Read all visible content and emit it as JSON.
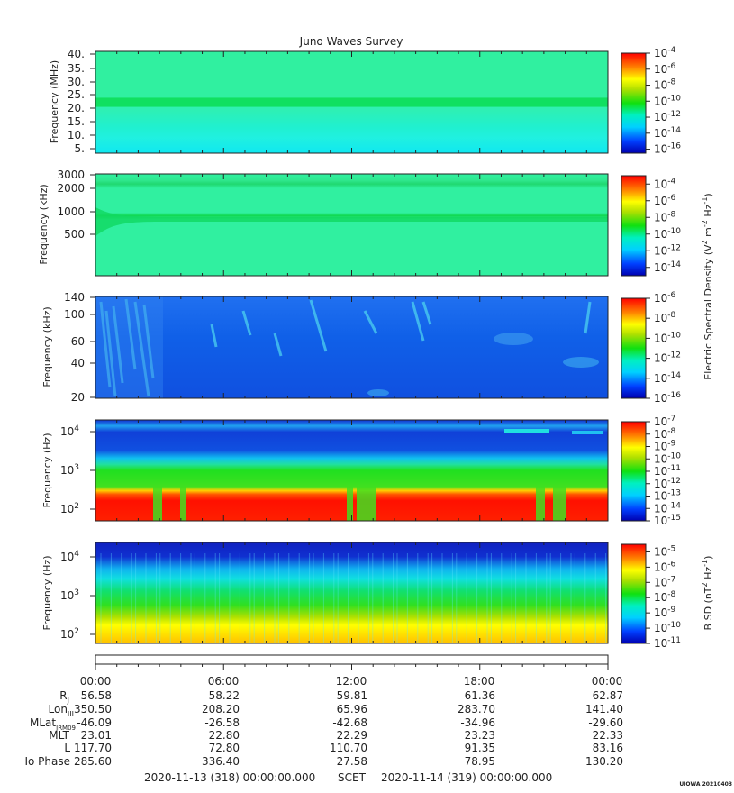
{
  "chart_data": {
    "type": "heatmap",
    "title": "Juno Waves Survey",
    "credit": "UIOWA 20210403",
    "panels": [
      {
        "ylabel": "Frequency (MHz)",
        "yscale": "linear",
        "yticks": [
          "40.",
          "35.",
          "30.",
          "25.",
          "20.",
          "15.",
          "10.",
          "5."
        ],
        "ylim": [
          3.5,
          40
        ],
        "colorbar": {
          "labels": [
            "10",
            "10",
            "10",
            "10",
            "10",
            "10",
            "10"
          ],
          "exps": [
            "-4",
            "-6",
            "-8",
            "-10",
            "-12",
            "-14",
            "-16"
          ],
          "range": [
            -16.5,
            -4
          ]
        }
      },
      {
        "ylabel": "Frequency (kHz)",
        "yscale": "log",
        "yticks": [
          "3000",
          "2000",
          "1000",
          "500"
        ],
        "ylim": [
          140,
          3000
        ],
        "colorbar": {
          "labels": [
            "10",
            "10",
            "10",
            "10",
            "10",
            "10"
          ],
          "exps": [
            "-4",
            "-6",
            "-8",
            "-10",
            "-12",
            "-14"
          ],
          "range": [
            -15,
            -3
          ]
        }
      },
      {
        "ylabel": "Frequency (kHz)",
        "yscale": "log",
        "yticks": [
          "140",
          "100",
          "60",
          "40",
          "20"
        ],
        "ylim": [
          20,
          140
        ],
        "colorbar": {
          "labels": [
            "10",
            "10",
            "10",
            "10",
            "10",
            "10"
          ],
          "exps": [
            "-6",
            "-8",
            "-10",
            "-12",
            "-14",
            "-16"
          ],
          "range": [
            -16,
            -6
          ]
        }
      },
      {
        "ylabel": "Frequency (Hz)",
        "yscale": "log",
        "yticks": [
          "10",
          "10",
          "10"
        ],
        "ytick_exps": [
          "4",
          "3",
          "2"
        ],
        "ylim": [
          50,
          20000
        ],
        "colorbar": {
          "labels": [
            "10",
            "10",
            "10",
            "10",
            "10",
            "10",
            "10",
            "10",
            "10"
          ],
          "exps": [
            "-7",
            "-8",
            "-9",
            "-10",
            "-11",
            "-12",
            "-13",
            "-14",
            "-15"
          ],
          "range": [
            -15,
            -7
          ]
        }
      },
      {
        "ylabel": "Frequency (Hz)",
        "yscale": "log",
        "yticks": [
          "10",
          "10",
          "10"
        ],
        "ytick_exps": [
          "4",
          "3",
          "2"
        ],
        "ylim": [
          50,
          20000
        ],
        "colorbar": {
          "labels": [
            "10",
            "10",
            "10",
            "10",
            "10",
            "10",
            "10"
          ],
          "exps": [
            "-5",
            "-6",
            "-7",
            "-8",
            "-9",
            "-10",
            "-11"
          ],
          "range": [
            -11,
            -4.5
          ]
        }
      }
    ],
    "colorbar_labels": {
      "electric": "Electric Spectral Density (V",
      "electric_sup1": "2",
      "electric_mid": " m",
      "electric_sup2": "-2",
      "electric_mid2": " Hz",
      "electric_sup3": "-1",
      "electric_end": ")",
      "magnetic": "B SD (nT",
      "magnetic_sup1": "2",
      "magnetic_mid": " Hz",
      "magnetic_sup2": "-1",
      "magnetic_end": ")"
    },
    "x": {
      "times": [
        "00:00",
        "06:00",
        "12:00",
        "18:00",
        "00:00"
      ]
    },
    "ephemeris": {
      "labels": {
        "rj": "R",
        "rj_sub": "J",
        "lon": "Lon",
        "lon_sub": "III",
        "mlat": "MLat",
        "mlat_sub": "JRM09",
        "mlt": "MLT",
        "l": "L",
        "io": "Io Phase"
      },
      "RJ": [
        "56.58",
        "58.22",
        "59.81",
        "61.36",
        "62.87"
      ],
      "Lon": [
        "350.50",
        "208.20",
        "65.96",
        "283.70",
        "141.40"
      ],
      "MLat": [
        "-46.09",
        "-26.58",
        "-42.68",
        "-34.96",
        "-29.60"
      ],
      "MLT": [
        "23.01",
        "22.80",
        "22.29",
        "23.23",
        "22.33"
      ],
      "L": [
        "117.70",
        "72.80",
        "110.70",
        "91.35",
        "83.16"
      ],
      "IoPhase": [
        "285.60",
        "336.40",
        "27.58",
        "78.95",
        "130.20"
      ]
    },
    "footer": {
      "start": "2020-11-13 (318) 00:00:00.000",
      "scet": "SCET",
      "end": "2020-11-14 (319) 00:00:00.000"
    }
  }
}
